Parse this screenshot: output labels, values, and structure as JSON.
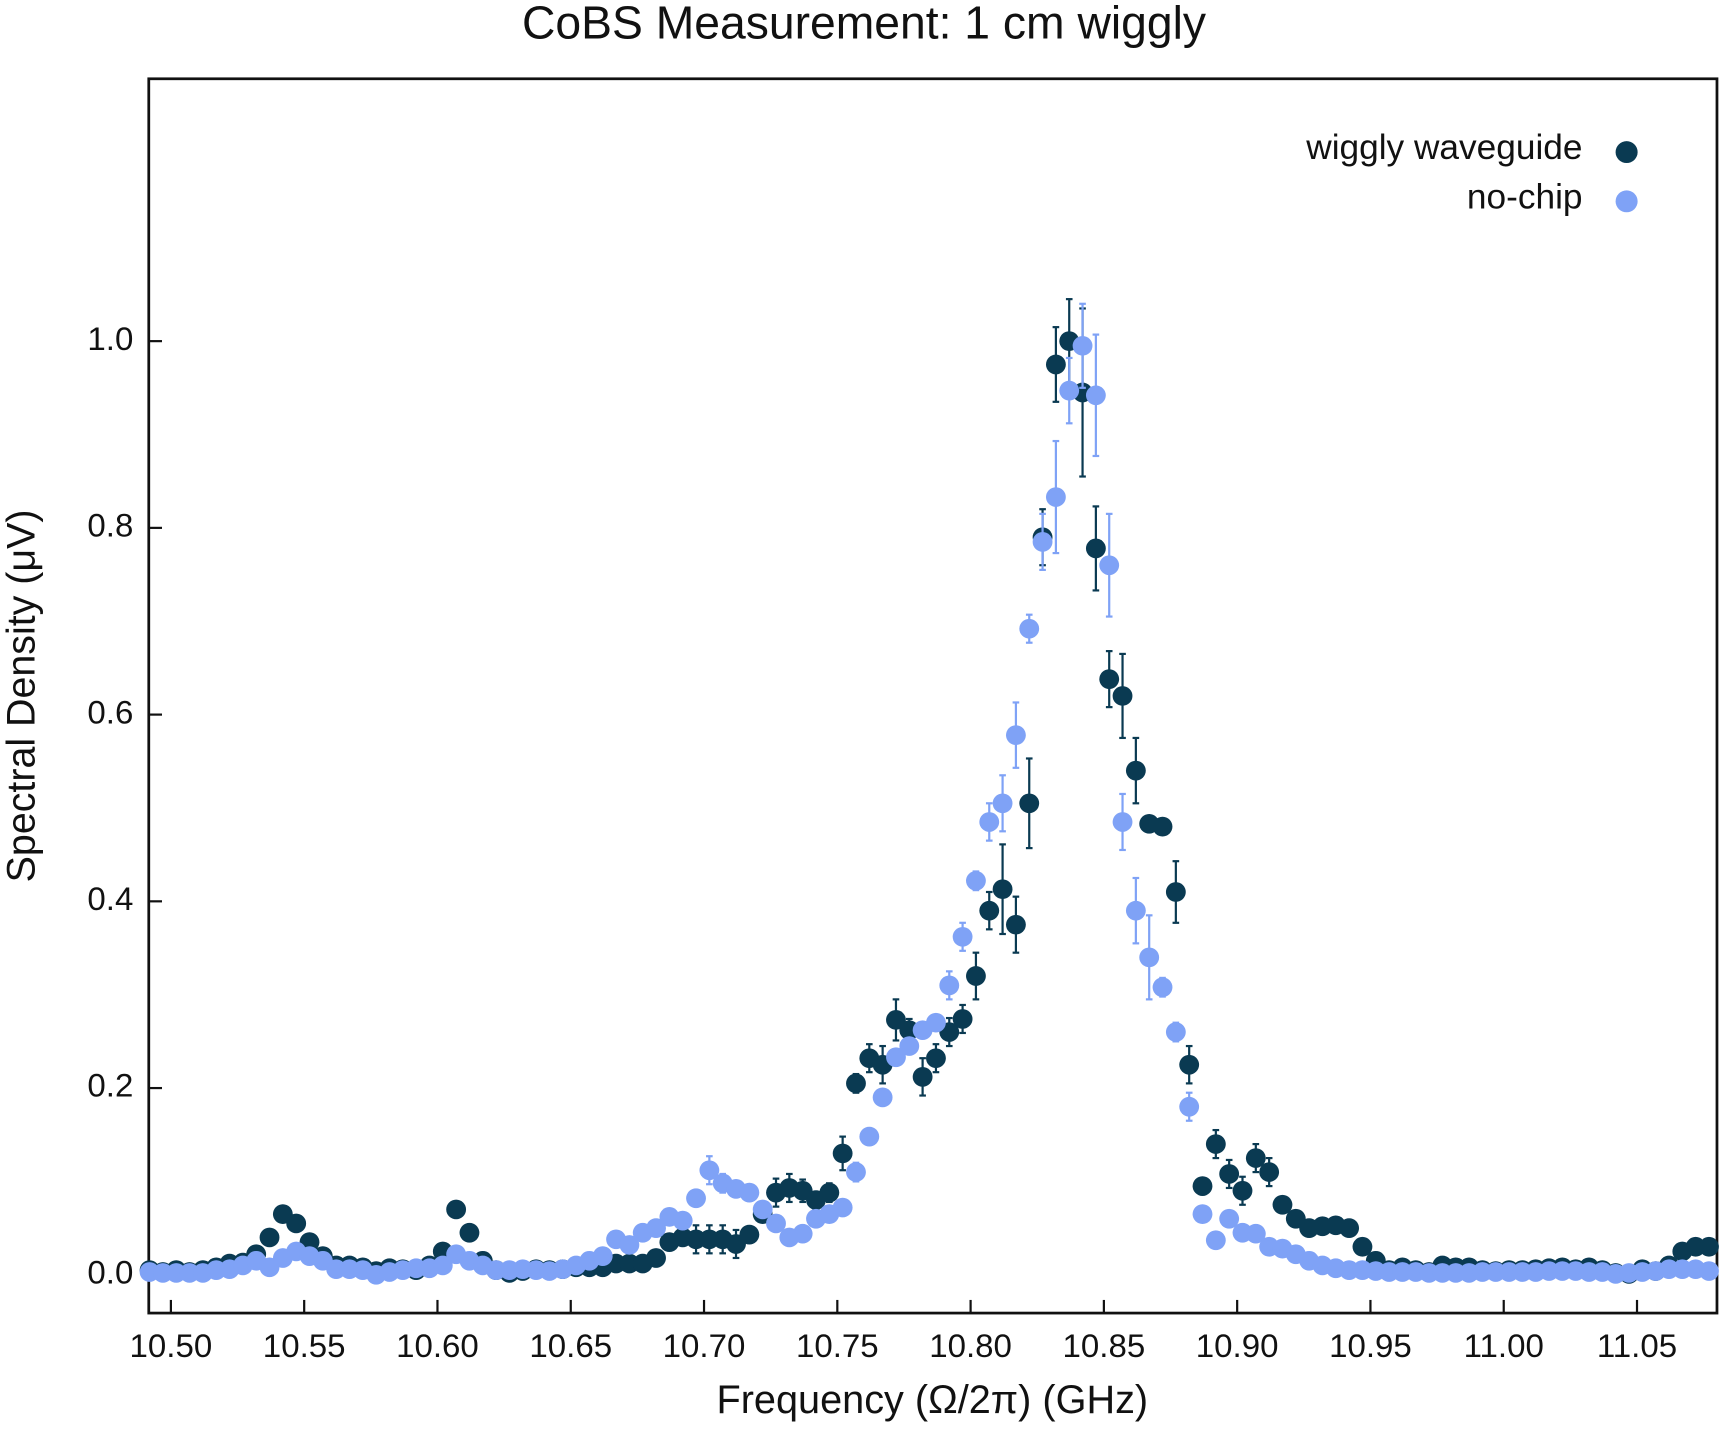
{
  "chart_data": {
    "type": "scatter",
    "title": "CoBS Measurement: 1 cm wiggly",
    "x_label": "Frequency (Ω/2π) (GHz)",
    "y_label": "Spectral Density (μV)",
    "xlim": [
      10.4917,
      11.08
    ],
    "ylim": [
      -0.041,
      1.281
    ],
    "xticks": [
      {
        "value": 10.5,
        "label": "10.50"
      },
      {
        "value": 10.55,
        "label": "10.55"
      },
      {
        "value": 10.6,
        "label": "10.60"
      },
      {
        "value": 10.65,
        "label": "10.65"
      },
      {
        "value": 10.7,
        "label": "10.70"
      },
      {
        "value": 10.75,
        "label": "10.75"
      },
      {
        "value": 10.8,
        "label": "10.80"
      },
      {
        "value": 10.85,
        "label": "10.85"
      },
      {
        "value": 10.9,
        "label": "10.90"
      },
      {
        "value": 10.95,
        "label": "10.95"
      },
      {
        "value": 11.0,
        "label": "11.00"
      },
      {
        "value": 11.05,
        "label": "11.05"
      }
    ],
    "yticks": [
      {
        "value": 0,
        "label": "0.0"
      },
      0.2,
      0.4,
      0.6,
      0.8,
      {
        "value": 1,
        "label": "1.0"
      }
    ],
    "legend": "top-right",
    "x": [
      10.492,
      10.497,
      10.502,
      10.507,
      10.512,
      10.517,
      10.522,
      10.527,
      10.532,
      10.537,
      10.542,
      10.547,
      10.552,
      10.557,
      10.562,
      10.567,
      10.572,
      10.577,
      10.582,
      10.587,
      10.592,
      10.597,
      10.602,
      10.607,
      10.612,
      10.617,
      10.622,
      10.627,
      10.632,
      10.637,
      10.642,
      10.647,
      10.652,
      10.657,
      10.662,
      10.667,
      10.672,
      10.677,
      10.682,
      10.687,
      10.692,
      10.697,
      10.702,
      10.707,
      10.712,
      10.717,
      10.722,
      10.727,
      10.732,
      10.737,
      10.742,
      10.747,
      10.752,
      10.757,
      10.762,
      10.767,
      10.772,
      10.777,
      10.782,
      10.787,
      10.792,
      10.797,
      10.802,
      10.807,
      10.812,
      10.817,
      10.822,
      10.827,
      10.832,
      10.837,
      10.842,
      10.847,
      10.852,
      10.857,
      10.862,
      10.867,
      10.872,
      10.877,
      10.882,
      10.887,
      10.892,
      10.897,
      10.902,
      10.907,
      10.912,
      10.917,
      10.922,
      10.927,
      10.932,
      10.937,
      10.942,
      10.947,
      10.952,
      10.957,
      10.962,
      10.967,
      10.972,
      10.977,
      10.982,
      10.987,
      10.992,
      10.997,
      11.002,
      11.007,
      11.012,
      11.017,
      11.022,
      11.027,
      11.032,
      11.037,
      11.042,
      11.047,
      11.052,
      11.057,
      11.062,
      11.067,
      11.072,
      11.077
    ],
    "series": [
      {
        "name": "wiggly waveguide",
        "color": "#0a3a52",
        "values": [
          0.005,
          0.003,
          0.005,
          0.003,
          0.005,
          0.008,
          0.012,
          0.013,
          0.022,
          0.04,
          0.065,
          0.055,
          0.035,
          0.02,
          0.01,
          0.01,
          0.008,
          0.004,
          0.007,
          0.006,
          0.005,
          0.01,
          0.025,
          0.07,
          0.045,
          0.015,
          0.005,
          0.002,
          0.004,
          0.006,
          0.005,
          0.006,
          0.008,
          0.008,
          0.008,
          0.012,
          0.012,
          0.012,
          0.018,
          0.035,
          0.04,
          0.038,
          0.038,
          0.038,
          0.033,
          0.043,
          0.065,
          0.088,
          0.093,
          0.09,
          0.08,
          0.088,
          0.13,
          0.205,
          0.232,
          0.225,
          0.273,
          0.262,
          0.212,
          0.232,
          0.26,
          0.274,
          0.32,
          0.39,
          0.413,
          0.375,
          0.505,
          0.79,
          0.975,
          1.0,
          0.945,
          0.778,
          0.638,
          0.62,
          0.54,
          0.483,
          0.48,
          0.41,
          0.225,
          0.095,
          0.14,
          0.108,
          0.09,
          0.125,
          0.11,
          0.075,
          0.06,
          0.05,
          0.052,
          0.053,
          0.05,
          0.03,
          0.015,
          0.005,
          0.008,
          0.005,
          0.003,
          0.01,
          0.008,
          0.008,
          0.005,
          0.004,
          0.005,
          0.005,
          0.006,
          0.007,
          0.008,
          0.006,
          0.008,
          0.005,
          0.002,
          0.001,
          0.006,
          0.004,
          0.01,
          0.025,
          0.03,
          0.03
        ],
        "errors": [
          0.004,
          0.004,
          0.004,
          0.004,
          0.004,
          0.004,
          0.004,
          0.004,
          0.004,
          0.004,
          0.004,
          0.004,
          0.004,
          0.004,
          0.004,
          0.004,
          0.004,
          0.004,
          0.004,
          0.004,
          0.004,
          0.004,
          0.004,
          0.004,
          0.004,
          0.004,
          0.004,
          0.004,
          0.004,
          0.004,
          0.004,
          0.004,
          0.004,
          0.004,
          0.004,
          0.004,
          0.004,
          0.004,
          0.004,
          0.004,
          0.004,
          0.015,
          0.015,
          0.015,
          0.015,
          0.004,
          0.004,
          0.015,
          0.015,
          0.012,
          0.004,
          0.01,
          0.018,
          0.01,
          0.015,
          0.02,
          0.022,
          0.012,
          0.02,
          0.015,
          0.015,
          0.015,
          0.025,
          0.02,
          0.048,
          0.03,
          0.048,
          0.03,
          0.04,
          0.045,
          0.09,
          0.045,
          0.03,
          0.045,
          0.035,
          0.005,
          0.005,
          0.033,
          0.02,
          0.005,
          0.015,
          0.015,
          0.015,
          0.015,
          0.015,
          0.004,
          0.004,
          0.004,
          0.004,
          0.004,
          0.004,
          0.004,
          0.004,
          0.004,
          0.004,
          0.004,
          0.004,
          0.004,
          0.004,
          0.004,
          0.004,
          0.004,
          0.004,
          0.004,
          0.004,
          0.004,
          0.004,
          0.004,
          0.004,
          0.004,
          0.004,
          0.004,
          0.004,
          0.004,
          0.004,
          0.004,
          0.004,
          0.004
        ]
      },
      {
        "name": "no-chip",
        "color": "#7fa2f6",
        "values": [
          0.003,
          0.002,
          0.002,
          0.002,
          0.002,
          0.005,
          0.006,
          0.01,
          0.015,
          0.008,
          0.018,
          0.025,
          0.02,
          0.015,
          0.006,
          0.006,
          0.005,
          0,
          0.003,
          0.005,
          0.007,
          0.007,
          0.01,
          0.022,
          0.015,
          0.01,
          0.005,
          0.005,
          0.006,
          0.005,
          0.004,
          0.006,
          0.01,
          0.015,
          0.02,
          0.038,
          0.032,
          0.045,
          0.05,
          0.062,
          0.058,
          0.082,
          0.112,
          0.098,
          0.092,
          0.088,
          0.07,
          0.055,
          0.04,
          0.044,
          0.06,
          0.065,
          0.072,
          0.11,
          0.148,
          0.19,
          0.233,
          0.245,
          0.262,
          0.27,
          0.31,
          0.362,
          0.422,
          0.485,
          0.505,
          0.578,
          0.692,
          0.785,
          0.833,
          0.947,
          0.995,
          0.942,
          0.76,
          0.485,
          0.39,
          0.34,
          0.308,
          0.26,
          0.18,
          0.065,
          0.037,
          0.06,
          0.045,
          0.044,
          0.03,
          0.028,
          0.022,
          0.015,
          0.01,
          0.007,
          0.005,
          0.005,
          0.004,
          0.003,
          0.003,
          0.003,
          0.002,
          0.002,
          0.002,
          0.002,
          0.003,
          0.003,
          0.003,
          0.003,
          0.003,
          0.004,
          0.004,
          0.004,
          0.003,
          0.003,
          0.001,
          0.002,
          0.003,
          0.004,
          0.006,
          0.006,
          0.006,
          0.004
        ],
        "errors": [
          0.004,
          0.004,
          0.004,
          0.004,
          0.004,
          0.004,
          0.004,
          0.004,
          0.004,
          0.004,
          0.004,
          0.004,
          0.004,
          0.004,
          0.004,
          0.004,
          0.004,
          0.004,
          0.004,
          0.004,
          0.004,
          0.004,
          0.004,
          0.004,
          0.004,
          0.004,
          0.004,
          0.004,
          0.004,
          0.004,
          0.004,
          0.004,
          0.004,
          0.004,
          0.004,
          0.004,
          0.004,
          0.004,
          0.004,
          0.004,
          0.004,
          0.004,
          0.015,
          0.01,
          0.004,
          0.004,
          0.004,
          0.004,
          0.004,
          0.004,
          0.004,
          0.004,
          0.004,
          0.01,
          0.004,
          0.004,
          0.004,
          0.004,
          0.004,
          0.004,
          0.015,
          0.015,
          0.01,
          0.02,
          0.03,
          0.035,
          0.015,
          0.03,
          0.06,
          0.035,
          0.045,
          0.065,
          0.055,
          0.03,
          0.035,
          0.045,
          0.01,
          0.01,
          0.015,
          0.004,
          0.004,
          0.004,
          0.004,
          0.004,
          0.004,
          0.004,
          0.004,
          0.004,
          0.004,
          0.004,
          0.004,
          0.004,
          0.004,
          0.004,
          0.004,
          0.004,
          0.004,
          0.004,
          0.004,
          0.004,
          0.004,
          0.004,
          0.004,
          0.004,
          0.004,
          0.004,
          0.004,
          0.004,
          0.004,
          0.004,
          0.004,
          0.004,
          0.004,
          0.004,
          0.004,
          0.004,
          0.004,
          0.004
        ]
      }
    ]
  }
}
